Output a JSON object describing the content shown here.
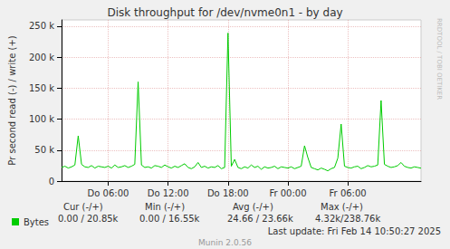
{
  "chart_data": {
    "type": "line",
    "title": "Disk throughput for /dev/nvme0n1 - by day",
    "y_label": "Pr second read (-) / write (+)",
    "categories": [
      null,
      null,
      null,
      null,
      null,
      null,
      null,
      null,
      null,
      null,
      null,
      null,
      null,
      null,
      "Do 06:00",
      null,
      null,
      null,
      null,
      null,
      null,
      null,
      null,
      null,
      null,
      null,
      null,
      null,
      null,
      null,
      null,
      null,
      "Do 12:00",
      null,
      null,
      null,
      null,
      null,
      null,
      null,
      null,
      null,
      null,
      null,
      null,
      null,
      null,
      null,
      null,
      null,
      "Do 18:00",
      null,
      null,
      null,
      null,
      null,
      null,
      null,
      null,
      null,
      null,
      null,
      null,
      null,
      null,
      null,
      null,
      null,
      "Fr 00:00",
      null,
      null,
      null,
      null,
      null,
      null,
      null,
      null,
      null,
      null,
      null,
      null,
      null,
      null,
      null,
      null,
      null,
      "Fr 06:00",
      null,
      null,
      null,
      null,
      null,
      null,
      null,
      null,
      null,
      null,
      null,
      null,
      null,
      null,
      null,
      null,
      null,
      null,
      null,
      null,
      null,
      null
    ],
    "series": [
      {
        "name": "Bytes",
        "color": "#00cc00",
        "values": [
          22000,
          24000,
          21000,
          23000,
          26000,
          73000,
          27000,
          23000,
          22000,
          25000,
          21000,
          24000,
          23000,
          22000,
          24000,
          21000,
          26000,
          22000,
          23000,
          25000,
          22000,
          24000,
          27000,
          160000,
          26000,
          22000,
          23000,
          21000,
          25000,
          24000,
          22000,
          26000,
          23000,
          21000,
          24000,
          22000,
          25000,
          28000,
          22000,
          20000,
          23000,
          30000,
          22000,
          24000,
          21000,
          23000,
          22000,
          25000,
          20000,
          22000,
          238760,
          24000,
          35000,
          22000,
          20000,
          23000,
          21000,
          26000,
          22000,
          24000,
          19000,
          23000,
          21000,
          22000,
          24000,
          20000,
          23000,
          22000,
          21000,
          23000,
          20000,
          22000,
          24000,
          57000,
          38000,
          22000,
          20000,
          18000,
          21000,
          19000,
          16550,
          20000,
          22000,
          37000,
          92000,
          24000,
          22000,
          21000,
          23000,
          24000,
          20000,
          22000,
          25000,
          23000,
          24000,
          26000,
          130000,
          27000,
          24000,
          22000,
          23000,
          25000,
          30000,
          24000,
          22000,
          21000,
          23000,
          22000,
          20850
        ]
      }
    ],
    "ylim": [
      0,
      260000
    ],
    "yticks": [
      0,
      {
        "value": 50000,
        "label": "50 k"
      },
      {
        "value": 100000,
        "label": "100 k"
      },
      {
        "value": 150000,
        "label": "150 k"
      },
      {
        "value": 200000,
        "label": "200 k"
      },
      {
        "value": 250000,
        "label": "250 k"
      }
    ],
    "grid": true,
    "legend": "bottom-left",
    "stats": {
      "columns": [
        "Cur (-/+)",
        "Min (-/+)",
        "Avg (-/+)",
        "Max (-/+)"
      ],
      "values": [
        "0.00 / 20.85k",
        "0.00 / 16.55k",
        "24.66 / 23.66k",
        "4.32k/238.76k"
      ]
    },
    "footer": "Last update: Fri Feb 14 10:50:27 2025",
    "credit": "Munin 2.0.56",
    "side_text": "RRDTOOL / TOBI OETIKER"
  }
}
